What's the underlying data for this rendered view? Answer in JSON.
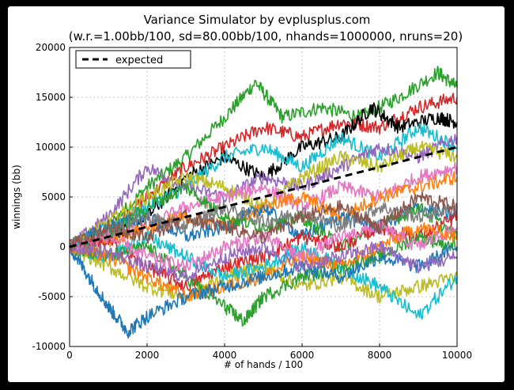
{
  "chart_data": {
    "type": "line",
    "title": "Variance Simulator by evplusplus.com",
    "subtitle": "(w.r.=1.00bb/100, sd=80.00bb/100, nhands=1000000, nruns=20)",
    "xlabel": "# of hands / 100",
    "ylabel": "winnings (bb)",
    "xlim": [
      0,
      10000
    ],
    "ylim": [
      -10000,
      20000
    ],
    "xticks": [
      "0",
      "2000",
      "4000",
      "6000",
      "8000",
      "10000"
    ],
    "yticks": [
      "-10000",
      "-5000",
      "0",
      "5000",
      "10000",
      "15000",
      "20000"
    ],
    "grid": true,
    "legend_position": "top-left",
    "expected": {
      "name": "expected",
      "color": "#000000",
      "style": "dashed",
      "x": [
        0,
        10000
      ],
      "y": [
        0,
        10000
      ]
    },
    "series": [
      {
        "color": "#2ca02c",
        "x": [
          0,
          1000,
          2000,
          3000,
          4000,
          4800,
          5500,
          6500,
          7500,
          8500,
          9500,
          10000
        ],
        "y": [
          0,
          2000,
          6000,
          9000,
          13000,
          16500,
          13000,
          14000,
          13000,
          15000,
          17500,
          16000
        ]
      },
      {
        "color": "#d62728",
        "x": [
          0,
          1000,
          2000,
          3000,
          4000,
          5000,
          6000,
          7000,
          8000,
          9000,
          10000
        ],
        "y": [
          0,
          1500,
          5000,
          8000,
          10000,
          12000,
          11000,
          12500,
          12000,
          14000,
          15000
        ]
      },
      {
        "color": "#000000",
        "x": [
          0,
          1000,
          2000,
          3000,
          4000,
          5000,
          6000,
          7000,
          7800,
          8500,
          9500,
          10000
        ],
        "y": [
          0,
          1000,
          3000,
          7000,
          9000,
          7000,
          10000,
          11000,
          14000,
          12000,
          13000,
          12500
        ]
      },
      {
        "color": "#17becf",
        "x": [
          0,
          1000,
          2000,
          3000,
          4000,
          5000,
          6000,
          7000,
          8000,
          9000,
          10000
        ],
        "y": [
          0,
          2000,
          4000,
          6000,
          9000,
          10000,
          8000,
          11000,
          9000,
          12000,
          10000
        ]
      },
      {
        "color": "#9467bd",
        "x": [
          0,
          1000,
          2000,
          3000,
          4000,
          5000,
          6000,
          7000,
          8000,
          9000,
          10000
        ],
        "y": [
          0,
          3000,
          8000,
          6000,
          5000,
          7000,
          6000,
          8000,
          10000,
          9000,
          11000
        ]
      },
      {
        "color": "#bcbd22",
        "x": [
          0,
          1000,
          2000,
          3000,
          4000,
          5000,
          6000,
          7000,
          8000,
          9000,
          10000
        ],
        "y": [
          0,
          2500,
          5000,
          7000,
          6000,
          4000,
          7000,
          9000,
          8000,
          10000,
          9000
        ]
      },
      {
        "color": "#e377c2",
        "x": [
          0,
          1000,
          2000,
          3000,
          4000,
          5000,
          6000,
          7000,
          8000,
          9000,
          10000
        ],
        "y": [
          0,
          1000,
          2000,
          4000,
          5000,
          6000,
          4000,
          6000,
          5000,
          7000,
          8000
        ]
      },
      {
        "color": "#ff7f0e",
        "x": [
          0,
          1000,
          2000,
          3000,
          4000,
          5000,
          6000,
          7000,
          8000,
          9000,
          10000
        ],
        "y": [
          0,
          500,
          2000,
          3000,
          2000,
          4000,
          5000,
          3000,
          5000,
          6000,
          7000
        ]
      },
      {
        "color": "#1f77b4",
        "x": [
          0,
          1000,
          2000,
          3000,
          4000,
          5000,
          6000,
          7000,
          8000,
          9000,
          10000
        ],
        "y": [
          0,
          2000,
          3000,
          1000,
          2000,
          4000,
          1000,
          3000,
          2000,
          4000,
          3000
        ]
      },
      {
        "color": "#2ca02c",
        "x": [
          0,
          1000,
          2000,
          3000,
          4000,
          5000,
          6000,
          7000,
          8000,
          9000,
          10000
        ],
        "y": [
          0,
          1000,
          4000,
          6000,
          3000,
          2000,
          3000,
          0,
          2000,
          4000,
          1000
        ]
      },
      {
        "color": "#7f7f7f",
        "x": [
          0,
          1000,
          2000,
          3000,
          4000,
          5000,
          6000,
          7000,
          8000,
          9000,
          10000
        ],
        "y": [
          0,
          1500,
          3000,
          2000,
          4000,
          2500,
          3500,
          2000,
          4000,
          3000,
          4000
        ]
      },
      {
        "color": "#d62728",
        "x": [
          0,
          1000,
          2000,
          3000,
          4000,
          5000,
          6000,
          7000,
          8000,
          9000,
          10000
        ],
        "y": [
          0,
          500,
          -2000,
          -4000,
          -2000,
          -1000,
          1000,
          0,
          2000,
          1000,
          3000
        ]
      },
      {
        "color": "#bcbd22",
        "x": [
          0,
          1000,
          2000,
          3000,
          4000,
          5000,
          6000,
          7000,
          8000,
          9000,
          10000
        ],
        "y": [
          0,
          -2000,
          -4000,
          -5000,
          -3000,
          -2000,
          -4000,
          -3000,
          -5000,
          -4000,
          -3000
        ]
      },
      {
        "color": "#17becf",
        "x": [
          0,
          1000,
          2000,
          3000,
          4000,
          5000,
          6000,
          7000,
          8000,
          9000,
          10000
        ],
        "y": [
          0,
          -1000,
          1000,
          -1000,
          -3000,
          -2000,
          0,
          -2000,
          -4000,
          -7000,
          -3000
        ]
      },
      {
        "color": "#2ca02c",
        "x": [
          0,
          1000,
          2000,
          3000,
          4000,
          4500,
          5000,
          6000,
          7000,
          8000,
          9000,
          10000
        ],
        "y": [
          0,
          -1000,
          0,
          -3000,
          -6000,
          -7500,
          -5000,
          -3000,
          -2000,
          -1000,
          1000,
          0
        ]
      },
      {
        "color": "#ff7f0e",
        "x": [
          0,
          1000,
          2000,
          3000,
          4000,
          5000,
          6000,
          7000,
          8000,
          9000,
          10000
        ],
        "y": [
          0,
          -1000,
          -3000,
          -5000,
          -4000,
          -3000,
          -1000,
          -2000,
          0,
          2000,
          1000
        ]
      },
      {
        "color": "#1f77b4",
        "x": [
          0,
          500,
          1000,
          1500,
          2000,
          3000,
          4000,
          5000,
          6000,
          7000,
          8000,
          9000,
          10000
        ],
        "y": [
          0,
          -3000,
          -6000,
          -8500,
          -7000,
          -5000,
          -4000,
          -3000,
          -2000,
          -3000,
          -1000,
          -2000,
          0
        ]
      },
      {
        "color": "#9467bd",
        "x": [
          0,
          1000,
          2000,
          3000,
          4000,
          5000,
          6000,
          7000,
          8000,
          9000,
          10000
        ],
        "y": [
          0,
          -500,
          -2000,
          -3000,
          -1000,
          0,
          -2000,
          -1000,
          0,
          -2000,
          -1000
        ]
      },
      {
        "color": "#e377c2",
        "x": [
          0,
          1000,
          2000,
          3000,
          4000,
          5000,
          6000,
          7000,
          8000,
          9000,
          10000
        ],
        "y": [
          0,
          1000,
          -1000,
          -2000,
          0,
          1000,
          -1000,
          1000,
          2000,
          0,
          2000
        ]
      },
      {
        "color": "#8c564b",
        "x": [
          0,
          1000,
          2000,
          3000,
          4000,
          5000,
          6000,
          7000,
          8000,
          9000,
          10000
        ],
        "y": [
          0,
          2000,
          1000,
          3000,
          2000,
          1000,
          3000,
          4000,
          2000,
          5000,
          4000
        ]
      }
    ]
  }
}
